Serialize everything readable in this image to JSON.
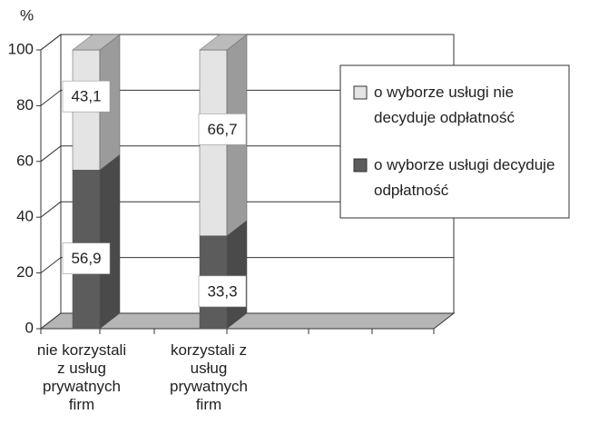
{
  "chart_data": {
    "type": "bar3d_stacked",
    "ylabel": "%",
    "categories": [
      "nie korzystali z usług prywatnych firm",
      "korzystali z usług prywatnych firm"
    ],
    "series": [
      {
        "name": "o wyborze usługi decyduje odpłatność",
        "color": "#5c5c5c",
        "values": [
          56.9,
          33.3
        ],
        "value_labels": [
          "56,9",
          "33,3"
        ]
      },
      {
        "name": "o wyborze usługi nie decyduje odpłatność",
        "color": "#e4e4e4",
        "values": [
          43.1,
          66.7
        ],
        "value_labels": [
          "43,1",
          "66,7"
        ]
      }
    ],
    "ylim": [
      0,
      100
    ],
    "yticks": [
      0,
      20,
      40,
      60,
      80,
      100
    ],
    "grid": true
  }
}
